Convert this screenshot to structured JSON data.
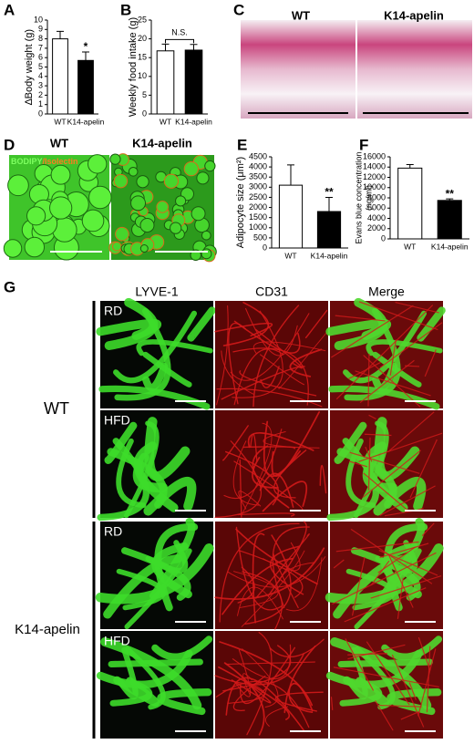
{
  "panel_labels": [
    "A",
    "B",
    "C",
    "D",
    "E",
    "F",
    "G"
  ],
  "chart_data": [
    {
      "type": "bar",
      "ylabel": "∆Body weight (g)",
      "categories": [
        "WT",
        "K14-apelin"
      ],
      "values": [
        8.0,
        5.7
      ],
      "errors": [
        0.8,
        0.9
      ],
      "colors": [
        "#ffffff",
        "#000000"
      ],
      "ylim": [
        0,
        10
      ],
      "yticks": [
        0,
        1,
        2,
        3,
        4,
        5,
        6,
        7,
        8,
        9,
        10
      ],
      "annotation": "*"
    },
    {
      "type": "bar",
      "ylabel": "Weekly food intake (g)",
      "categories": [
        "WT",
        "K14-apelin"
      ],
      "values": [
        16.8,
        17.0
      ],
      "errors": [
        1.8,
        1.5
      ],
      "colors": [
        "#ffffff",
        "#000000"
      ],
      "ylim": [
        0,
        25
      ],
      "yticks": [
        0,
        5,
        10,
        15,
        20,
        25
      ],
      "annotation": "N.S."
    },
    {
      "type": "bar",
      "ylabel": "Adipocyte size (μm²)",
      "categories": [
        "WT",
        "K14-apelin"
      ],
      "values": [
        3100,
        1800
      ],
      "errors": [
        1000,
        700
      ],
      "colors": [
        "#ffffff",
        "#000000"
      ],
      "ylim": [
        0,
        4500
      ],
      "yticks": [
        0,
        500,
        1000,
        1500,
        2000,
        2500,
        3000,
        3500,
        4000,
        4500
      ],
      "annotation": "**"
    },
    {
      "type": "bar",
      "ylabel": "Evans blue concentration",
      "ylabel2": "(ng/ml)",
      "categories": [
        "WT",
        "K14-apelin"
      ],
      "values": [
        13800,
        7500
      ],
      "errors": [
        700,
        300
      ],
      "colors": [
        "#ffffff",
        "#000000"
      ],
      "ylim": [
        0,
        16000
      ],
      "yticks": [
        0,
        2000,
        4000,
        6000,
        8000,
        10000,
        12000,
        14000,
        16000
      ],
      "annotation": "**"
    }
  ],
  "panel_c": {
    "labels": [
      "WT",
      "K14-apelin"
    ]
  },
  "panel_d": {
    "labels": [
      "WT",
      "K14-apelin"
    ],
    "stain_labels": [
      "BODIPY",
      "/Isolectin"
    ]
  },
  "panel_g": {
    "columns": [
      "LYVE-1",
      "CD31",
      "Merge"
    ],
    "groups": [
      {
        "name": "WT",
        "rows": [
          "RD",
          "HFD"
        ]
      },
      {
        "name": "K14-apelin",
        "rows": [
          "RD",
          "HFD"
        ]
      }
    ]
  }
}
